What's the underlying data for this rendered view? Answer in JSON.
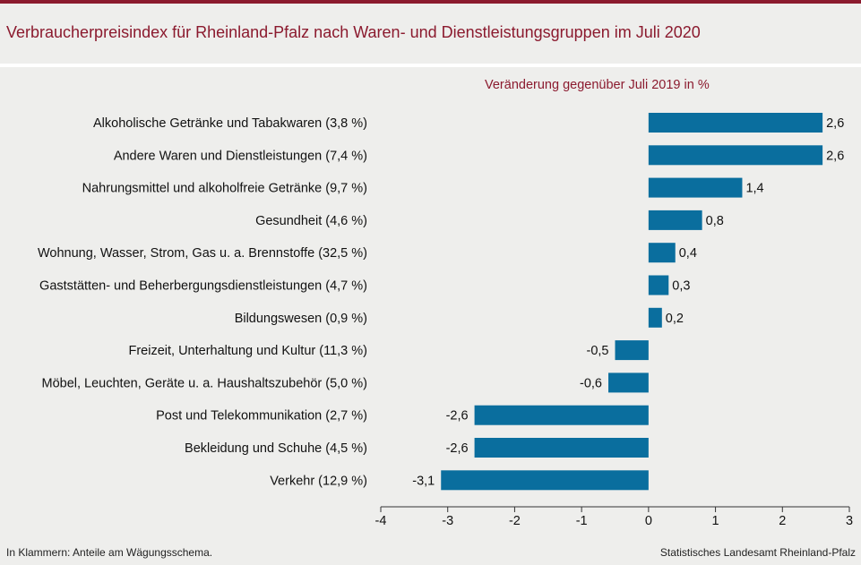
{
  "title": "Verbraucherpreisindex für Rheinland-Pfalz nach Waren- und Dienstleistungsgruppen im Juli 2020",
  "footnote": "In Klammern: Anteile am Wägungsschema.",
  "source": "Statistisches Landesamt Rheinland-Pfalz",
  "colors": {
    "accent": "#8b1a2e",
    "bar": "#0a6e9e",
    "background": "#eeeeec"
  },
  "chart_data": {
    "type": "bar",
    "orientation": "horizontal",
    "subtitle": "Veränderung gegenüber Juli 2019 in %",
    "categories": [
      "Alkoholische Getränke und Tabakwaren (3,8 %)",
      "Andere Waren und Dienstleistungen (7,4 %)",
      "Nahrungsmittel und alkoholfreie Getränke (9,7 %)",
      "Gesundheit (4,6 %)",
      "Wohnung, Wasser, Strom, Gas u. a. Brennstoffe (32,5 %)",
      "Gaststätten- und Beherbergungsdienstleistungen (4,7 %)",
      "Bildungswesen (0,9 %)",
      "Freizeit, Unterhaltung und Kultur (11,3 %)",
      "Möbel, Leuchten, Geräte u. a. Haushaltszubehör  (5,0 %)",
      "Post und Telekommunikation (2,7 %)",
      "Bekleidung und Schuhe (4,5 %)",
      "Verkehr (12,9 %)"
    ],
    "values": [
      2.6,
      2.6,
      1.4,
      0.8,
      0.4,
      0.3,
      0.2,
      -0.5,
      -0.6,
      -2.6,
      -2.6,
      -3.1
    ],
    "value_labels": [
      "2,6",
      "2,6",
      "1,4",
      "0,8",
      "0,4",
      "0,3",
      "0,2",
      "-0,5",
      "-0,6",
      "-2,6",
      "-2,6",
      "-3,1"
    ],
    "xlim": [
      -4,
      3
    ],
    "xticks": [
      -4,
      -3,
      -2,
      -1,
      0,
      1,
      2,
      3
    ],
    "xtick_labels": [
      "-4",
      "-3",
      "-2",
      "-1",
      "0",
      "1",
      "2",
      "3"
    ],
    "grid": false,
    "legend": "none"
  }
}
